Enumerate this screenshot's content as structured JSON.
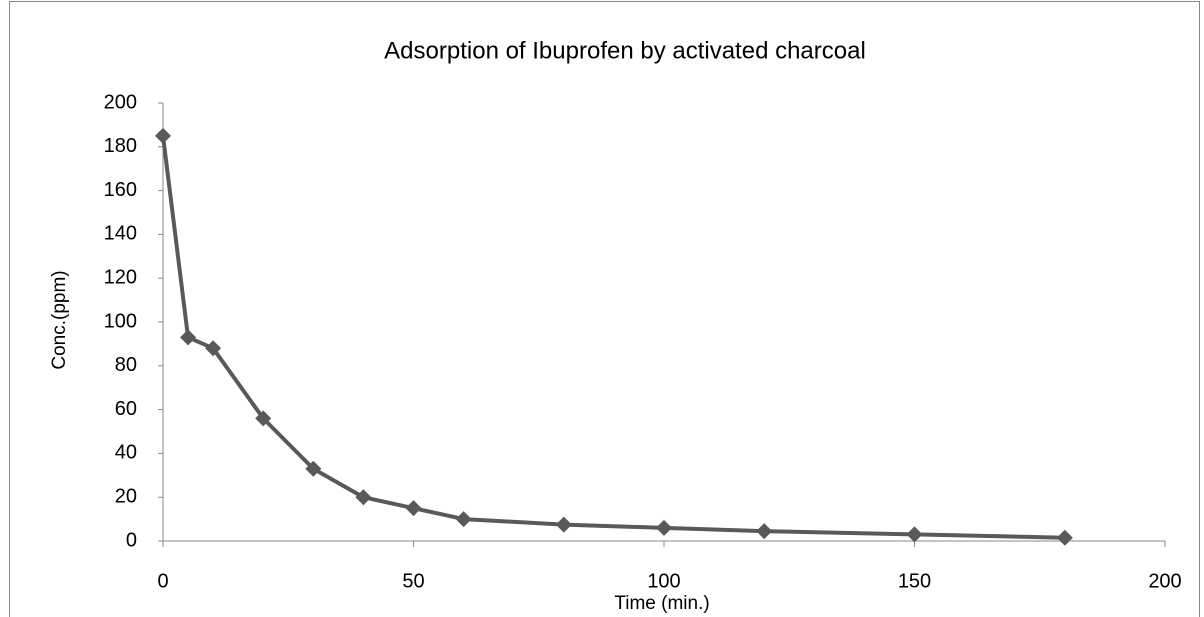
{
  "chart_data": {
    "type": "line",
    "title": "Adsorption of Ibuprofen by activated charcoal",
    "x_label": "Time (min.)",
    "y_label": "Conc.(ppm)",
    "x": [
      0,
      5,
      10,
      20,
      30,
      40,
      50,
      60,
      80,
      100,
      120,
      150,
      180
    ],
    "series": [
      {
        "color": "#595959",
        "values": [
          185,
          93,
          88,
          56,
          33,
          20,
          15,
          10,
          7.5,
          6,
          4.5,
          3,
          1.5
        ]
      }
    ],
    "xlim": [
      0,
      200
    ],
    "xticks": [
      0,
      50,
      100,
      150,
      200
    ],
    "ylim": [
      0,
      200
    ],
    "yticks": [
      0,
      20,
      40,
      60,
      80,
      100,
      120,
      140,
      160,
      180,
      200
    ],
    "grid": false
  }
}
